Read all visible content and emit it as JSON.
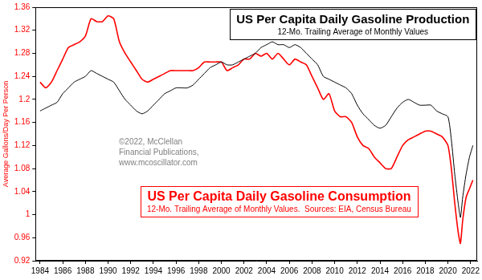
{
  "chart_data": {
    "type": "line",
    "ylabel": "Average Gallons/Day Per Person",
    "annotations": [
      "©2022, McClellan",
      "Financial Publications,",
      "www.mcoscillator.com"
    ],
    "x": [
      1984,
      1984.5,
      1985,
      1985.5,
      1986,
      1986.5,
      1987,
      1987.5,
      1988,
      1988.5,
      1989,
      1989.5,
      1990,
      1990.5,
      1991,
      1991.5,
      1992,
      1992.5,
      1993,
      1993.5,
      1994,
      1994.5,
      1995,
      1995.5,
      1996,
      1996.5,
      1997,
      1997.5,
      1998,
      1998.5,
      1999,
      1999.5,
      2000,
      2000.5,
      2001,
      2001.5,
      2002,
      2002.5,
      2003,
      2003.5,
      2004,
      2004.5,
      2005,
      2005.5,
      2006,
      2006.5,
      2007,
      2007.5,
      2008,
      2008.5,
      2009,
      2009.5,
      2010,
      2010.5,
      2011,
      2011.5,
      2012,
      2012.5,
      2013,
      2013.5,
      2014,
      2014.5,
      2015,
      2015.5,
      2016,
      2016.5,
      2017,
      2017.5,
      2018,
      2018.5,
      2019,
      2019.5,
      2020,
      2020.3,
      2020.6,
      2020.9,
      2021.1,
      2021.3,
      2021.6,
      2021.9,
      2022.2
    ],
    "series": [
      {
        "name": "US Per Capita Daily Gasoline Production",
        "subtitle": "12-Mo. Trailing Average of Monthly Values",
        "color": "#000000",
        "values": [
          1.18,
          1.185,
          1.19,
          1.195,
          1.21,
          1.22,
          1.23,
          1.235,
          1.24,
          1.25,
          1.245,
          1.24,
          1.235,
          1.23,
          1.215,
          1.2,
          1.19,
          1.18,
          1.175,
          1.18,
          1.19,
          1.2,
          1.21,
          1.215,
          1.22,
          1.22,
          1.22,
          1.225,
          1.235,
          1.245,
          1.255,
          1.26,
          1.265,
          1.26,
          1.26,
          1.265,
          1.27,
          1.275,
          1.28,
          1.29,
          1.295,
          1.3,
          1.295,
          1.295,
          1.29,
          1.295,
          1.29,
          1.28,
          1.27,
          1.26,
          1.24,
          1.235,
          1.23,
          1.225,
          1.22,
          1.21,
          1.19,
          1.175,
          1.165,
          1.155,
          1.15,
          1.155,
          1.17,
          1.185,
          1.195,
          1.2,
          1.195,
          1.19,
          1.19,
          1.19,
          1.18,
          1.175,
          1.17,
          1.13,
          1.07,
          1.02,
          0.995,
          1.03,
          1.07,
          1.1,
          1.12
        ]
      },
      {
        "name": "US Per Capita Daily Gasoline Consumption",
        "subtitle": "12-Mo. Trailing Average of Monthly Values.  Sources: EIA, Census Bureau",
        "color": "#ff0000",
        "values": [
          1.23,
          1.22,
          1.23,
          1.25,
          1.27,
          1.29,
          1.295,
          1.3,
          1.31,
          1.34,
          1.335,
          1.335,
          1.345,
          1.34,
          1.3,
          1.28,
          1.265,
          1.25,
          1.235,
          1.23,
          1.235,
          1.24,
          1.245,
          1.25,
          1.25,
          1.25,
          1.25,
          1.25,
          1.255,
          1.265,
          1.265,
          1.265,
          1.265,
          1.25,
          1.255,
          1.26,
          1.27,
          1.27,
          1.28,
          1.275,
          1.28,
          1.27,
          1.28,
          1.27,
          1.26,
          1.27,
          1.265,
          1.26,
          1.24,
          1.22,
          1.2,
          1.21,
          1.18,
          1.17,
          1.17,
          1.16,
          1.135,
          1.12,
          1.115,
          1.1,
          1.09,
          1.08,
          1.08,
          1.1,
          1.12,
          1.13,
          1.135,
          1.14,
          1.145,
          1.145,
          1.14,
          1.135,
          1.12,
          1.08,
          1.02,
          0.97,
          0.95,
          0.99,
          1.03,
          1.045,
          1.06
        ]
      }
    ],
    "xlim": [
      1983.6,
      2022.6
    ],
    "xticks": [
      1984,
      1986,
      1988,
      1990,
      1992,
      1994,
      1996,
      1998,
      2000,
      2002,
      2004,
      2006,
      2008,
      2010,
      2012,
      2014,
      2016,
      2018,
      2020,
      2022
    ],
    "ylim": [
      0.92,
      1.36
    ],
    "yticks": [
      0.92,
      0.96,
      1,
      1.04,
      1.08,
      1.12,
      1.16,
      1.2,
      1.24,
      1.28,
      1.32,
      1.36
    ],
    "grid": false
  }
}
